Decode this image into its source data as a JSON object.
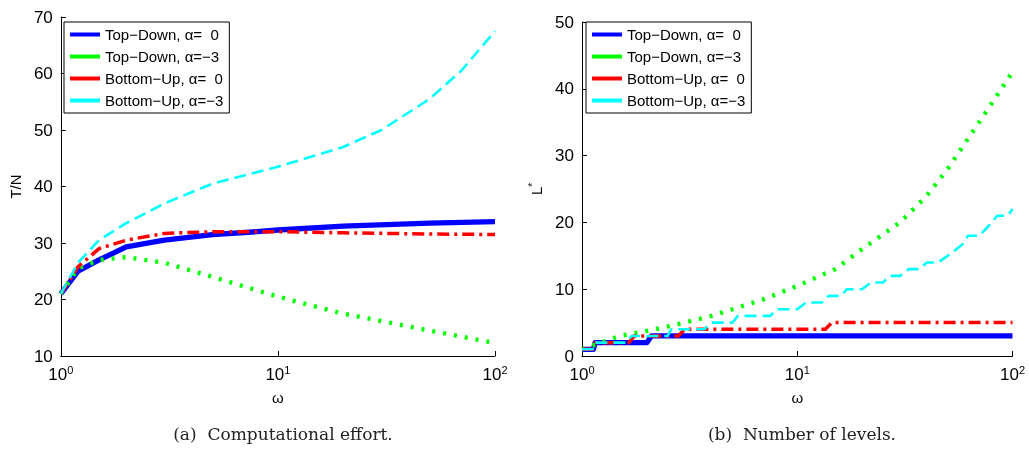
{
  "chart_data": [
    {
      "type": "line",
      "xlabel": "ω",
      "ylabel": "T/N",
      "log": "x",
      "grid": false,
      "legend": "top left",
      "marker": "none",
      "xlim": [
        1,
        100
      ],
      "xticks": [
        {
          "value": 1,
          "label": "10$^{0}$"
        },
        {
          "value": 10,
          "label": "10$^{1}$"
        },
        {
          "value": 100,
          "label": "10$^{2}$"
        }
      ],
      "ylim": [
        10,
        70
      ],
      "yticks": [
        10,
        20,
        30,
        40,
        50,
        60,
        70
      ],
      "annotations": [
        "(a)  Computational effort."
      ],
      "series": [
        {
          "name": "Top−Down, α=  0",
          "color": "#0000ff",
          "line_style": "solid",
          "x": [
            1,
            1.2,
            1.5,
            2,
            3,
            5,
            8,
            10,
            20,
            50,
            100
          ],
          "values": [
            21,
            25,
            27,
            29.3,
            30.5,
            31.5,
            32,
            32.3,
            33,
            33.5,
            33.8
          ]
        },
        {
          "name": "Top−Down, α=−3",
          "color": "#00ff00",
          "line_style": "dotted",
          "x": [
            1,
            1.2,
            1.5,
            2,
            3,
            5,
            10,
            20,
            50,
            100
          ],
          "values": [
            21,
            25.5,
            27,
            27.5,
            26.5,
            24,
            20.5,
            17.5,
            14.5,
            12.3
          ]
        },
        {
          "name": "Bottom−Up, α=  0",
          "color": "#ff0000",
          "line_style": "dashdot",
          "x": [
            1,
            1.2,
            1.5,
            2,
            3,
            5,
            10,
            20,
            50,
            100
          ],
          "values": [
            21,
            25.8,
            29,
            30.5,
            31.7,
            32,
            32,
            31.8,
            31.6,
            31.5
          ]
        },
        {
          "name": "Bottom−Up, α=−3",
          "color": "#00ffff",
          "line_style": "dashed",
          "x": [
            1,
            1.2,
            1.5,
            2,
            3,
            5,
            10,
            20,
            30,
            50,
            70,
            100
          ],
          "values": [
            21,
            26.5,
            30.5,
            33.5,
            37,
            40.5,
            43.5,
            47,
            50,
            55.5,
            60.5,
            67.5
          ]
        }
      ]
    },
    {
      "type": "line",
      "xlabel": "ω",
      "ylabel": "L$^{*}$",
      "log": "x",
      "grid": false,
      "legend": "top left",
      "marker": "none",
      "xlim": [
        1,
        100
      ],
      "xticks": [
        {
          "value": 1,
          "label": "10$^{0}$"
        },
        {
          "value": 10,
          "label": "10$^{1}$"
        },
        {
          "value": 100,
          "label": "10$^{2}$"
        }
      ],
      "ylim": [
        0,
        50
      ],
      "yticks": [
        0,
        10,
        20,
        30,
        40,
        50
      ],
      "annotations": [
        "(b)  Number of levels."
      ],
      "series": [
        {
          "name": "Top−Down, α=  0",
          "color": "#0000ff",
          "line_style": "solid",
          "x": [
            1,
            1.13,
            1.15,
            2,
            2.1,
            100
          ],
          "values": [
            1,
            1,
            2,
            2,
            3,
            3
          ]
        },
        {
          "name": "Top−Down, α=−3",
          "color": "#00ff00",
          "line_style": "dotted",
          "x": [
            1,
            1.5,
            2.2,
            3,
            4,
            5,
            7,
            10,
            15,
            20,
            30,
            40,
            50,
            70,
            100
          ],
          "values": [
            1,
            3,
            4,
            5,
            6,
            7,
            8.5,
            10.5,
            13,
            16,
            20,
            24,
            28,
            35,
            42.5
          ]
        },
        {
          "name": "Bottom−Up, α=  0",
          "color": "#ff0000",
          "line_style": "dashdot",
          "x": [
            1,
            1.12,
            1.15,
            1.65,
            1.75,
            2.8,
            3,
            13.5,
            14.5,
            100
          ],
          "values": [
            1,
            1,
            2,
            2,
            3,
            3,
            4,
            4,
            5,
            5
          ]
        },
        {
          "name": "Bottom−Up, α=−3",
          "color": "#00ffff",
          "line_style": "dashed",
          "x": [
            1,
            1.12,
            1.15,
            1.6,
            1.7,
            2.5,
            2.6,
            3.7,
            4,
            5,
            5.3,
            7.5,
            8,
            10,
            11,
            13,
            14,
            16,
            17,
            20,
            22,
            25,
            27,
            30,
            33,
            37,
            40,
            45,
            50,
            55,
            60,
            62,
            70,
            75,
            80,
            85,
            95,
            100
          ],
          "values": [
            1,
            1,
            2,
            2,
            3,
            3,
            4,
            4,
            5,
            5,
            6,
            6,
            7,
            7,
            8,
            8,
            9,
            9,
            10,
            10,
            11,
            11,
            12,
            12,
            13,
            13,
            14,
            14,
            15,
            16,
            17,
            18,
            18,
            19,
            20,
            21,
            21,
            22
          ]
        }
      ]
    }
  ]
}
